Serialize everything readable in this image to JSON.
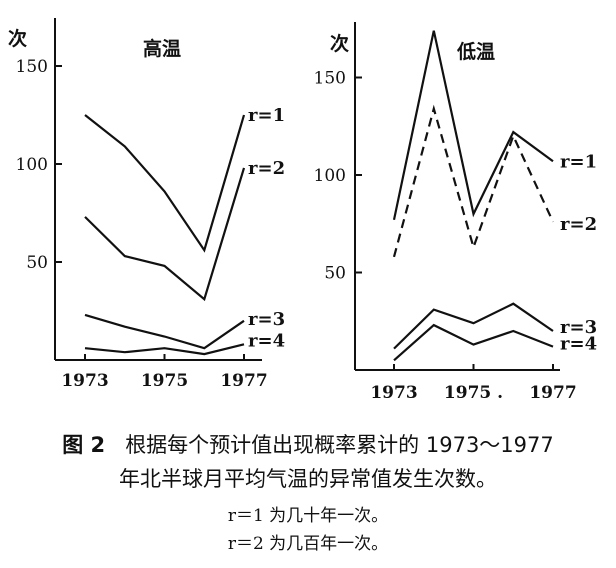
{
  "chart_data": [
    {
      "type": "line",
      "title": "高温",
      "ylabel": "次",
      "ylim": [
        0,
        160
      ],
      "yticks": [
        50,
        100,
        150
      ],
      "xlim": [
        1972.4,
        1977.6
      ],
      "xticks": [
        1973,
        1975,
        1977
      ],
      "x": [
        1973,
        1974,
        1975,
        1976,
        1977
      ],
      "series": [
        {
          "name": "r=1",
          "values": [
            125,
            109,
            86,
            56,
            125
          ],
          "dashed": false
        },
        {
          "name": "r=2",
          "values": [
            73,
            53,
            48,
            31,
            98
          ],
          "dashed": false
        },
        {
          "name": "r=3",
          "values": [
            23,
            17,
            12,
            6,
            20
          ],
          "dashed": false
        },
        {
          "name": "r=4",
          "values": [
            6,
            4,
            6,
            3,
            8
          ],
          "dashed": false
        }
      ]
    },
    {
      "type": "line",
      "title": "低温",
      "ylabel": "次",
      "ylim": [
        0,
        175
      ],
      "yticks": [
        50,
        100,
        150
      ],
      "xlim": [
        1972.4,
        1977.6
      ],
      "xticks": [
        1973,
        "1975 .",
        1977
      ],
      "x": [
        1973,
        1974,
        1975,
        1976,
        1977
      ],
      "series": [
        {
          "name": "r=1",
          "values": [
            77,
            174,
            80,
            122,
            107
          ],
          "dashed": false
        },
        {
          "name": "r=2",
          "values": [
            58,
            134,
            63,
            120,
            76
          ],
          "dashed": true
        },
        {
          "name": "r=3",
          "values": [
            11,
            31,
            24,
            34,
            20
          ],
          "dashed": false
        },
        {
          "name": "r=4",
          "values": [
            5,
            23,
            13,
            20,
            12
          ],
          "dashed": false
        }
      ]
    }
  ],
  "caption": {
    "label": "图 2",
    "line1": "根据每个预计值出现概率累计的 1973～1977",
    "line2": "年北半球月平均气温的异常值发生次数。",
    "notes": [
      "r＝1 为几十年一次。",
      "r＝2 为几百年一次。"
    ]
  },
  "colors": {
    "line": "#111111",
    "background": "#ffffff"
  }
}
